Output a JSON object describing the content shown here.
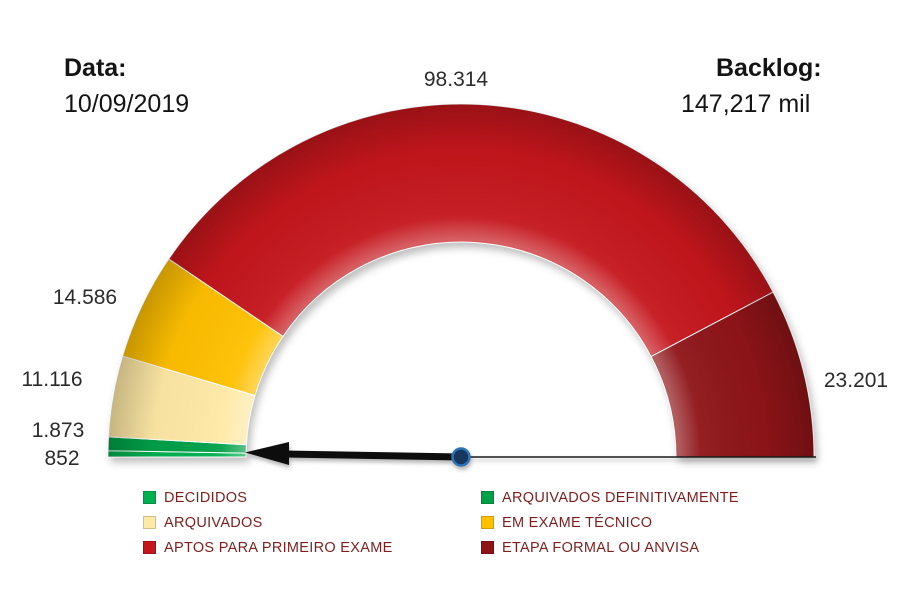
{
  "header": {
    "date_label": "Data:",
    "date_value": "10/09/2019",
    "backlog_label": "Backlog:",
    "backlog_value": "147,217 mil"
  },
  "chart_data": {
    "type": "gauge",
    "shape": "semicircle-donut",
    "start_angle_deg": 180,
    "end_angle_deg": 0,
    "legend_position": "bottom",
    "needle_direction": "left",
    "needle_color": "#111111",
    "pivot_color": "#17375E",
    "segments": [
      {
        "name": "DECIDIDOS",
        "value": 852,
        "label": "852",
        "color": "#00B050"
      },
      {
        "name": "ARQUIVADOS DEFINITIVAMENTE",
        "value": 1873,
        "label": "1.873",
        "color": "#00A048"
      },
      {
        "name": "ARQUIVADOS",
        "value": 11116,
        "label": "11.116",
        "color": "#FFE9A6"
      },
      {
        "name": "EM EXAME TÉCNICO",
        "value": 14586,
        "label": "14.586",
        "color": "#FFC000"
      },
      {
        "name": "APTOS PARA PRIMEIRO EXAME",
        "value": 98314,
        "label": "98.314",
        "color": "#C4161C"
      },
      {
        "name": "ETAPA FORMAL OU ANVISA",
        "value": 23201,
        "label": "23.201",
        "color": "#8E1418"
      }
    ]
  }
}
